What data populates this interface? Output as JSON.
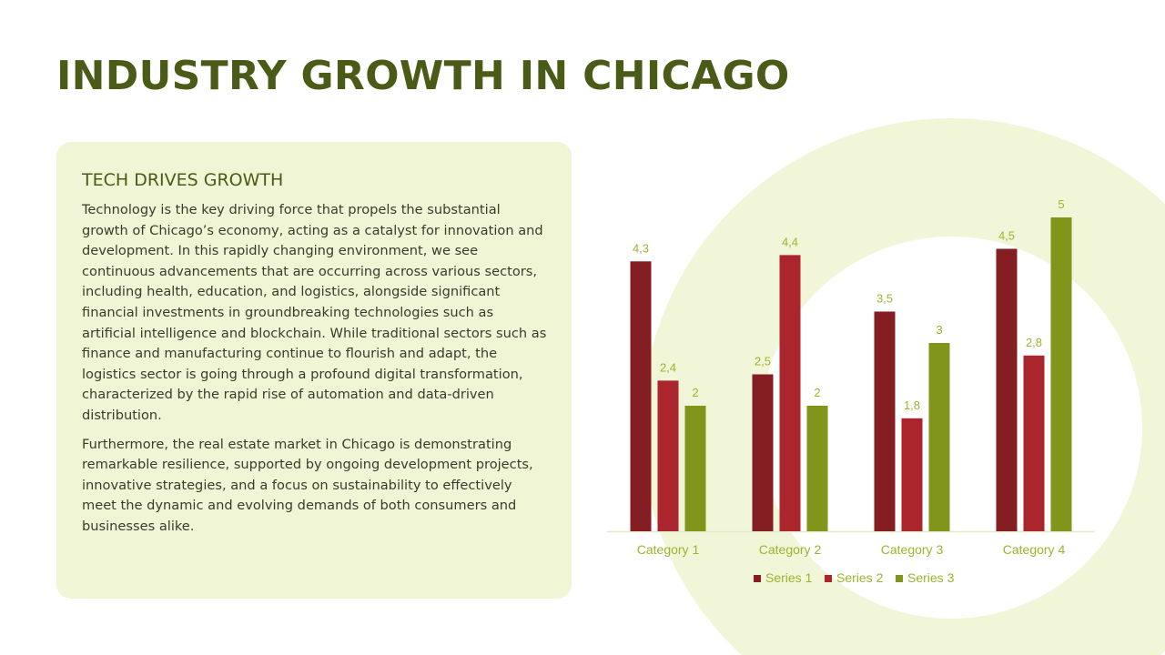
{
  "slide": {
    "title": "INDUSTRY GROWTH IN CHICAGO",
    "panel_heading": "TECH DRIVES GROWTH",
    "paragraphs": [
      "Technology is the key driving force that propels the substantial growth of Chicago’s economy, acting as a catalyst for innovation and development. In this rapidly changing environment, we see continuous advancements that are occurring across various sectors, including health, education, and logistics, alongside significant financial investments in groundbreaking technologies such as artificial intelligence and blockchain. While traditional sectors such as finance and manufacturing continue to flourish and adapt, the logistics sector is going through a profound digital transformation, characterized by the rapid rise of automation and data-driven distribution.",
      "Furthermore, the real estate market in Chicago is demonstrating remarkable resilience, supported by ongoing development projects, innovative strategies, and a focus on sustainability to effectively meet the dynamic and evolving demands of both consumers and businesses alike."
    ]
  },
  "colors": {
    "title": "#4a5a17",
    "panel_background": "#eff5d5",
    "decoration": "#f1f6d8",
    "chart_text": "#9eb32e",
    "axis_line": "#e4ebcb"
  },
  "chart_data": {
    "type": "bar",
    "categories": [
      "Category 1",
      "Category 2",
      "Category 3",
      "Category 4"
    ],
    "series": [
      {
        "name": "Series 1",
        "values": [
          4.3,
          2.5,
          3.5,
          4.5
        ],
        "labels": [
          "4,3",
          "2,5",
          "3,5",
          "4,5"
        ],
        "color": "#841e22"
      },
      {
        "name": "Series 2",
        "values": [
          2.4,
          4.4,
          1.8,
          2.8
        ],
        "labels": [
          "2,4",
          "4,4",
          "1,8",
          "2,8"
        ],
        "color": "#ab252c"
      },
      {
        "name": "Series 3",
        "values": [
          2,
          2,
          3,
          5
        ],
        "labels": [
          "2",
          "2",
          "3",
          "5"
        ],
        "color": "#82951b"
      }
    ],
    "ylim": [
      0,
      5
    ],
    "title": "",
    "xlabel": "",
    "ylabel": "",
    "grid": false,
    "legend": "bottom",
    "data_labels": true
  }
}
